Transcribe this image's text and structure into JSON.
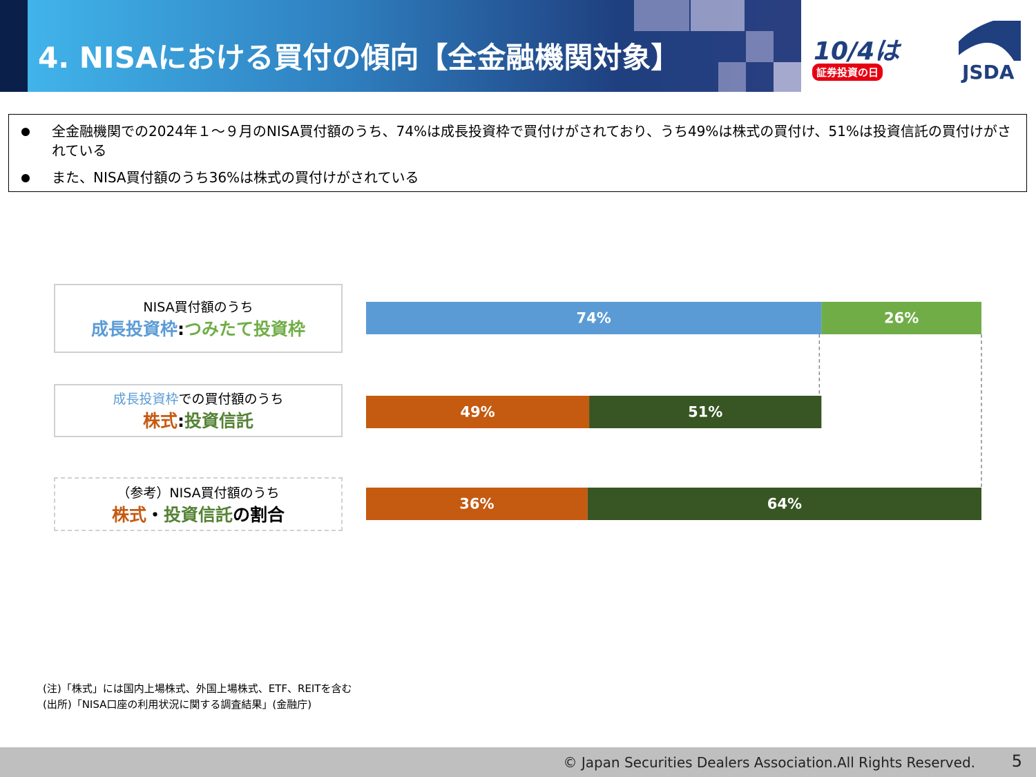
{
  "header": {
    "title": "4. NISAにおける買付の傾向【全金融機関対象】",
    "logo": {
      "day": "10/4は",
      "day_caption": "証券投資の日",
      "org": "JSDA"
    }
  },
  "bullets": [
    "全金融機関での2024年１～９月のNISA買付額のうち、74%は成長投資枠で買付けがされており、うち49%は株式の買付け、51%は投資信託の買付けがされている",
    "また、NISA買付額のうち36%は株式の買付けがされている"
  ],
  "chart_data": {
    "type": "stacked-bar",
    "xlim": [
      0,
      100
    ],
    "rows": [
      {
        "caption": [
          {
            "text": "NISA買付額のうち",
            "color": "#000000"
          }
        ],
        "heading": [
          {
            "text": "成長投資枠",
            "color": "#5b9bd5"
          },
          {
            "text": ":",
            "color": "#000000"
          },
          {
            "text": "つみたて投資枠",
            "color": "#70ad47"
          }
        ],
        "values": [
          74,
          26
        ],
        "value_labels": [
          "74%",
          "26%"
        ],
        "colors": [
          "#5b9bd5",
          "#70ad47"
        ]
      },
      {
        "caption": [
          {
            "text": "成長投資枠",
            "color": "#5b9bd5"
          },
          {
            "text": "での買付額のうち",
            "color": "#000000"
          }
        ],
        "heading": [
          {
            "text": "株式",
            "color": "#c55a11"
          },
          {
            "text": ":",
            "color": "#000000"
          },
          {
            "text": "投資信託",
            "color": "#548235"
          }
        ],
        "values": [
          49,
          51
        ],
        "value_labels": [
          "49%",
          "51%"
        ],
        "colors": [
          "#c55a11",
          "#375623"
        ]
      },
      {
        "caption": [
          {
            "text": "（参考）NISA買付額のうち",
            "color": "#000000"
          }
        ],
        "heading": [
          {
            "text": "株式",
            "color": "#c55a11"
          },
          {
            "text": "・",
            "color": "#000000"
          },
          {
            "text": "投資信託",
            "color": "#548235"
          },
          {
            "text": "の割合",
            "color": "#000000"
          }
        ],
        "values": [
          36,
          64
        ],
        "value_labels": [
          "36%",
          "64%"
        ],
        "colors": [
          "#c55a11",
          "#375623"
        ]
      }
    ]
  },
  "notes": [
    "(注)「株式」には国内上場株式、外国上場株式、ETF、REITを含む",
    "(出所)「NISA口座の利用状況に関する調査結果」(金融庁)"
  ],
  "footer": {
    "copyright": "© Japan Securities Dealers Association.All Rights Reserved.",
    "page": "5"
  }
}
